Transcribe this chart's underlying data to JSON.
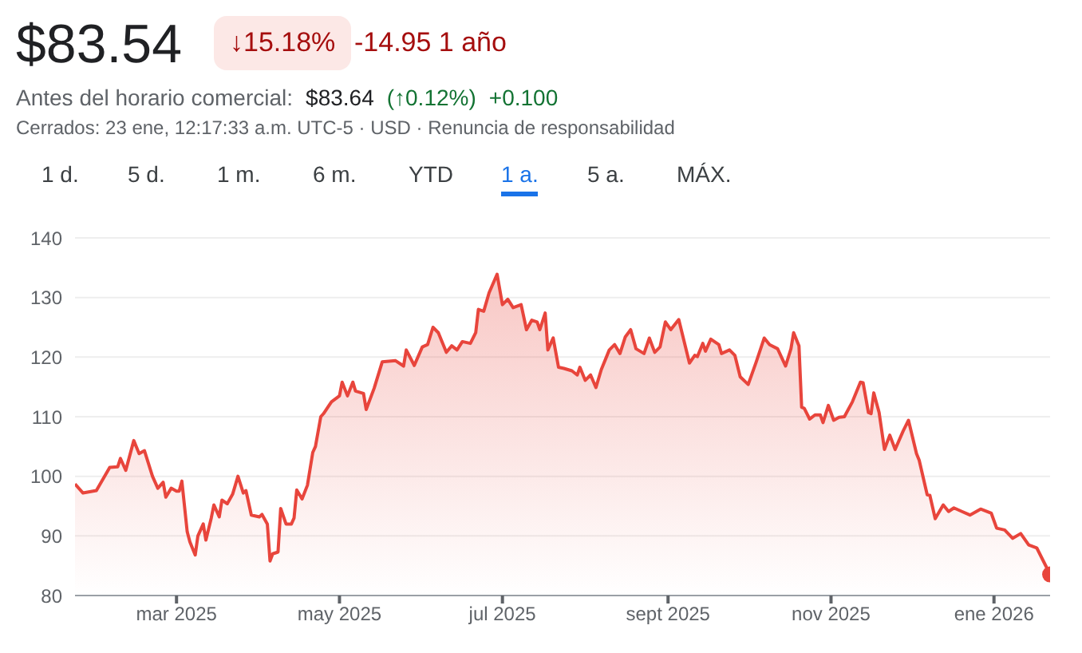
{
  "chart_data": {
    "type": "area",
    "title": "$83.54",
    "annotations": [
      "↓15.18%",
      "-14.95 1 año",
      "Antes del horario comercial:",
      "$83.64",
      "(↑0.12%)",
      "+0.100",
      "Cerrados: 23 ene, 12:17:33 a.m. UTC-5 · USD · Renuncia de responsabilidad",
      "1 d.",
      "5 d.",
      "1 m.",
      "6 m.",
      "YTD",
      "1 a.",
      "5 a.",
      "MÁX."
    ],
    "x": [
      "2025-01-22",
      "2025-01-25",
      "2025-01-30",
      "2025-02-04",
      "2025-02-07",
      "2025-02-08",
      "2025-02-10",
      "2025-02-13",
      "2025-02-15",
      "2025-02-17",
      "2025-02-20",
      "2025-02-22",
      "2025-02-24",
      "2025-02-25",
      "2025-02-27",
      "2025-03-01",
      "2025-03-02",
      "2025-03-03",
      "2025-03-05",
      "2025-03-06",
      "2025-03-08",
      "2025-03-09",
      "2025-03-11",
      "2025-03-12",
      "2025-03-14",
      "2025-03-15",
      "2025-03-17",
      "2025-03-18",
      "2025-03-20",
      "2025-03-22",
      "2025-03-24",
      "2025-03-26",
      "2025-03-27",
      "2025-03-29",
      "2025-04-01",
      "2025-04-02",
      "2025-04-04",
      "2025-04-05",
      "2025-04-06",
      "2025-04-08",
      "2025-04-09",
      "2025-04-11",
      "2025-04-13",
      "2025-04-14",
      "2025-04-15",
      "2025-04-17",
      "2025-04-19",
      "2025-04-21",
      "2025-04-22",
      "2025-04-24",
      "2025-04-25",
      "2025-04-28",
      "2025-05-01",
      "2025-05-02",
      "2025-05-04",
      "2025-05-06",
      "2025-05-07",
      "2025-05-10",
      "2025-05-11",
      "2025-05-14",
      "2025-05-17",
      "2025-05-22",
      "2025-05-25",
      "2025-05-26",
      "2025-05-29",
      "2025-06-01",
      "2025-06-03",
      "2025-06-05",
      "2025-06-07",
      "2025-06-10",
      "2025-06-12",
      "2025-06-14",
      "2025-06-16",
      "2025-06-19",
      "2025-06-21",
      "2025-06-22",
      "2025-06-24",
      "2025-06-26",
      "2025-06-29",
      "2025-07-01",
      "2025-07-03",
      "2025-07-05",
      "2025-07-08",
      "2025-07-10",
      "2025-07-12",
      "2025-07-14",
      "2025-07-15",
      "2025-07-17",
      "2025-07-18",
      "2025-07-20",
      "2025-07-22",
      "2025-07-24",
      "2025-07-27",
      "2025-07-29",
      "2025-07-30",
      "2025-08-01",
      "2025-08-03",
      "2025-08-05",
      "2025-08-07",
      "2025-08-10",
      "2025-08-12",
      "2025-08-14",
      "2025-08-16",
      "2025-08-18",
      "2025-08-20",
      "2025-08-23",
      "2025-08-25",
      "2025-08-27",
      "2025-08-29",
      "2025-08-31",
      "2025-09-02",
      "2025-09-05",
      "2025-09-09",
      "2025-09-11",
      "2025-09-12",
      "2025-09-14",
      "2025-09-15",
      "2025-09-17",
      "2025-09-20",
      "2025-09-21",
      "2025-09-24",
      "2025-09-26",
      "2025-09-28",
      "2025-10-01",
      "2025-10-04",
      "2025-10-07",
      "2025-10-09",
      "2025-10-12",
      "2025-10-15",
      "2025-10-17",
      "2025-10-18",
      "2025-10-20",
      "2025-10-21",
      "2025-10-22",
      "2025-10-24",
      "2025-10-26",
      "2025-10-28",
      "2025-10-29",
      "2025-10-31",
      "2025-11-02",
      "2025-11-04",
      "2025-11-06",
      "2025-11-09",
      "2025-11-12",
      "2025-11-13",
      "2025-11-15",
      "2025-11-16",
      "2025-11-17",
      "2025-11-19",
      "2025-11-21",
      "2025-11-23",
      "2025-11-25",
      "2025-11-28",
      "2025-11-30",
      "2025-12-03",
      "2025-12-04",
      "2025-12-07",
      "2025-12-08",
      "2025-12-10",
      "2025-12-13",
      "2025-12-15",
      "2025-12-17",
      "2025-12-20",
      "2025-12-23",
      "2025-12-27",
      "2025-12-31",
      "2026-01-02",
      "2026-01-05",
      "2026-01-08",
      "2026-01-11",
      "2026-01-14",
      "2026-01-17",
      "2026-01-22"
    ],
    "series": [
      {
        "color": "#e8453c",
        "values": [
          98.7,
          97.2,
          97.6,
          101.5,
          101.6,
          103.0,
          101.0,
          106.0,
          103.8,
          104.3,
          100.0,
          98.0,
          99.0,
          96.5,
          98.0,
          97.5,
          97.5,
          99.2,
          90.7,
          89.0,
          86.8,
          90.0,
          92.0,
          89.3,
          93.0,
          95.2,
          93.2,
          96.0,
          95.4,
          97.0,
          100.0,
          97.2,
          97.6,
          93.5,
          93.2,
          93.6,
          92.0,
          85.8,
          87.0,
          87.3,
          94.6,
          92.0,
          92.0,
          93.0,
          97.7,
          96.2,
          98.5,
          104.0,
          105.0,
          110.0,
          110.5,
          112.5,
          113.5,
          115.8,
          113.5,
          115.8,
          114.3,
          113.9,
          111.2,
          114.8,
          119.2,
          119.4,
          118.5,
          121.2,
          118.6,
          121.7,
          122.1,
          125.0,
          124.1,
          120.8,
          121.9,
          121.2,
          122.6,
          122.3,
          124.1,
          128.0,
          127.7,
          130.8,
          133.9,
          128.8,
          129.7,
          128.3,
          128.8,
          124.6,
          126.2,
          125.9,
          124.6,
          127.4,
          121.2,
          123.2,
          118.3,
          118.1,
          117.7,
          117.0,
          118.3,
          116.1,
          117.0,
          114.9,
          117.9,
          121.2,
          122.1,
          120.6,
          123.4,
          124.6,
          121.4,
          120.6,
          123.2,
          120.8,
          121.7,
          125.9,
          124.6,
          126.3,
          119.0,
          120.3,
          120.1,
          122.3,
          121.0,
          123.0,
          122.1,
          120.6,
          121.2,
          120.3,
          116.7,
          115.4,
          119.2,
          123.2,
          122.1,
          121.4,
          118.5,
          121.4,
          124.1,
          121.9,
          111.6,
          111.4,
          109.6,
          110.3,
          110.3,
          109.0,
          111.9,
          109.4,
          109.9,
          110.0,
          112.5,
          115.8,
          115.7,
          110.7,
          110.5,
          114.0,
          110.7,
          104.5,
          106.9,
          104.5,
          107.6,
          109.4,
          103.8,
          102.7,
          96.9,
          96.8,
          92.9,
          95.2,
          94.1,
          94.7,
          94.1,
          93.5,
          94.5,
          93.8,
          91.3,
          91.0,
          89.6,
          90.4,
          88.5,
          88.0,
          83.54
        ]
      }
    ],
    "xlim": [
      "2025-01-22",
      "2026-01-22"
    ],
    "xticks": [
      {
        "value": "2025-03-01",
        "label": "mar 2025"
      },
      {
        "value": "2025-05-01",
        "label": "may 2025"
      },
      {
        "value": "2025-07-01",
        "label": "jul 2025"
      },
      {
        "value": "2025-09-01",
        "label": "sept 2025"
      },
      {
        "value": "2025-11-01",
        "label": "nov 2025"
      },
      {
        "value": "2026-01-01",
        "label": "ene 2026"
      }
    ],
    "ylim": [
      80,
      140
    ],
    "yticks": [
      80,
      90,
      100,
      110,
      120,
      130,
      140
    ],
    "grid": "y",
    "legend": false,
    "marker": "none"
  }
}
